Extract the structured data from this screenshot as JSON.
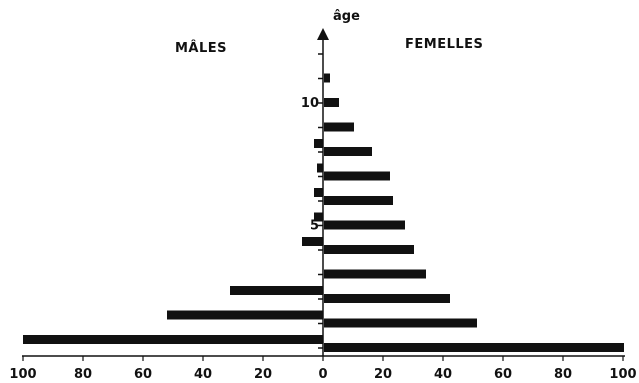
{
  "chart_data": {
    "type": "bar",
    "orientation": "horizontal-pyramid",
    "left_label": "MÂLES",
    "right_label": "FEMELLES",
    "axis_label": "âge",
    "xlim": [
      -100,
      100
    ],
    "xticks": [
      "100",
      "80",
      "60",
      "40",
      "20",
      "0",
      "20",
      "40",
      "60",
      "80",
      "100"
    ],
    "age_tick_labels": [
      {
        "age": 5,
        "label": "5"
      },
      {
        "age": 10,
        "label": "10"
      }
    ],
    "ages": [
      0,
      1,
      2,
      3,
      4,
      5,
      6,
      7,
      8,
      9,
      10,
      11
    ],
    "males": [
      100,
      52,
      31,
      0,
      7,
      3,
      3,
      2,
      3,
      0,
      0,
      0
    ],
    "females": [
      100,
      51,
      42,
      34,
      30,
      27,
      23,
      22,
      16,
      10,
      5,
      2
    ]
  }
}
